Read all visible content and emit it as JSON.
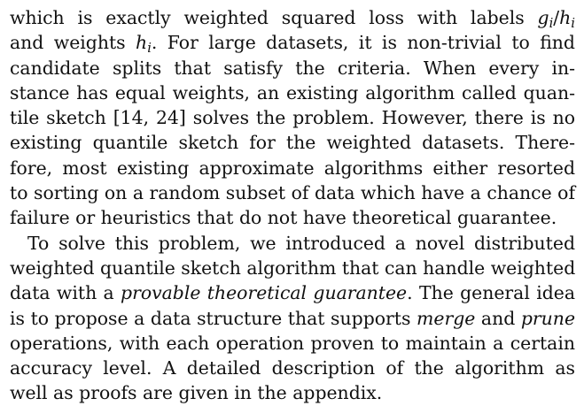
{
  "paragraph1": {
    "l1_text": "which is exactly weighted squared loss with labels ",
    "l1_g": "g",
    "l1_gi": "i",
    "l1_slash": "/",
    "l1_h": "h",
    "l1_hi": "i",
    "l2_a": "and weights ",
    "l2_h": "h",
    "l2_hi": "i",
    "l2_b": ". For large datasets, it is non-trivial to find",
    "l3": "candidate splits that satisfy the criteria. When every in-",
    "l4": "stance has equal weights, an existing algorithm called quan-",
    "l5": "tile sketch [14, 24] solves the problem. However, there is no",
    "l6": "existing quantile sketch for the weighted datasets. There-",
    "l7": "fore, most existing approximate algorithms either resorted",
    "l8": "to sorting on a random subset of data which have a chance of",
    "l9": "failure or heuristics that do not have theoretical guarantee."
  },
  "paragraph2": {
    "l1": "To solve this problem, we introduced a novel distributed",
    "l2": "weighted quantile sketch algorithm that can handle weighted",
    "l3_a": "data with a ",
    "l3_em": "provable theoretical guarantee",
    "l3_b": ". The general idea",
    "l4_a": "is to propose a data structure that supports ",
    "l4_em1": "merge",
    "l4_b": " and ",
    "l4_em2": "prune",
    "l5": "operations, with each operation proven to maintain a certain",
    "l6": "accuracy level. A detailed description of the algorithm as",
    "l7": "well as proofs are given in the appendix."
  }
}
